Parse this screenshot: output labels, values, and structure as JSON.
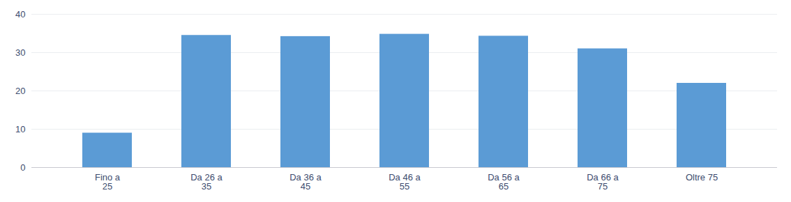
{
  "chart_data": {
    "type": "bar",
    "categories": [
      "Fino a\n25",
      "Da 26 a\n35",
      "Da 36 a\n45",
      "Da 46 a\n55",
      "Da 56 a\n65",
      "Da 66 a\n75",
      "Oltre 75"
    ],
    "values": [
      9.0,
      34.5,
      34.2,
      34.8,
      34.3,
      31.0,
      22.0
    ],
    "color": "#5B9BD5",
    "ylim": [
      0,
      40
    ],
    "yticks": [
      0,
      10,
      20,
      30,
      40
    ],
    "grid": true
  }
}
